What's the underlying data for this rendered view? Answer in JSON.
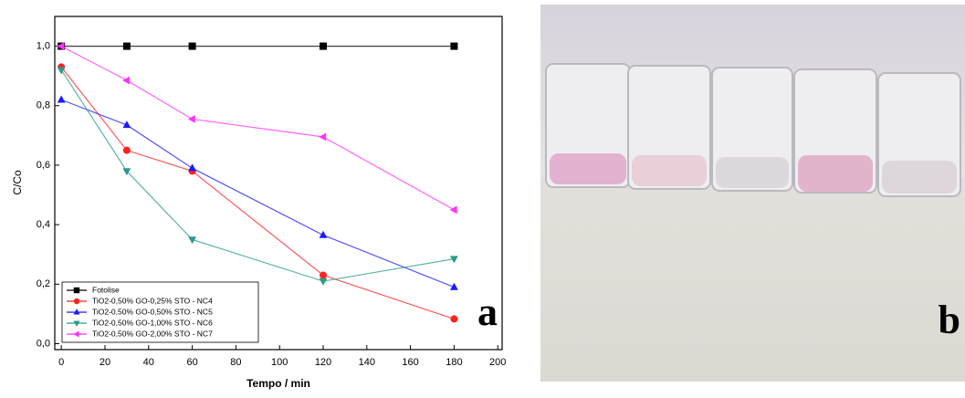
{
  "chart_data": {
    "type": "line",
    "y_label": "C/Co",
    "x_label": "Tempo / min",
    "annotation": "a",
    "x": [
      0,
      30,
      60,
      120,
      180
    ],
    "series": [
      {
        "name": "Fotolise",
        "color": "#000000",
        "marker": "square",
        "values": [
          1.0,
          1.0,
          1.0,
          1.0,
          1.0
        ]
      },
      {
        "name": "TiO2-0,50% GO-0,25% STO - NC4",
        "color": "#ff2020",
        "marker": "circle",
        "values": [
          0.93,
          0.65,
          0.58,
          0.23,
          0.083
        ]
      },
      {
        "name": "TiO2-0,50% GO-0,50% STO - NC5",
        "color": "#1a1aff",
        "marker": "triangle-up",
        "values": [
          0.82,
          0.735,
          0.59,
          0.365,
          0.19
        ]
      },
      {
        "name": "TiO2-0,50% GO-1,00% STO - NC6",
        "color": "#2a9a8a",
        "marker": "triangle-down",
        "values": [
          0.92,
          0.58,
          0.35,
          0.21,
          0.285
        ]
      },
      {
        "name": "TiO2-0,50% GO-2,00% STO - NC7",
        "color": "#ff33ff",
        "marker": "triangle-left",
        "values": [
          1.0,
          0.885,
          0.755,
          0.695,
          0.45
        ]
      }
    ],
    "xlim": [
      -3,
      202
    ],
    "ylim": [
      -0.02,
      1.1
    ],
    "xticks": [
      0,
      20,
      40,
      60,
      80,
      100,
      120,
      140,
      160,
      180,
      200
    ],
    "yticks": [
      {
        "value": 0,
        "label": "0,0"
      },
      {
        "value": 0.2,
        "label": "0,2"
      },
      {
        "value": 0.4,
        "label": "0,4"
      },
      {
        "value": 0.6,
        "label": "0,6"
      },
      {
        "value": 0.8,
        "label": "0,8"
      },
      {
        "value": 1.0,
        "label": "1,0"
      }
    ],
    "legend": "lower left"
  },
  "photo": {
    "label": "b"
  }
}
